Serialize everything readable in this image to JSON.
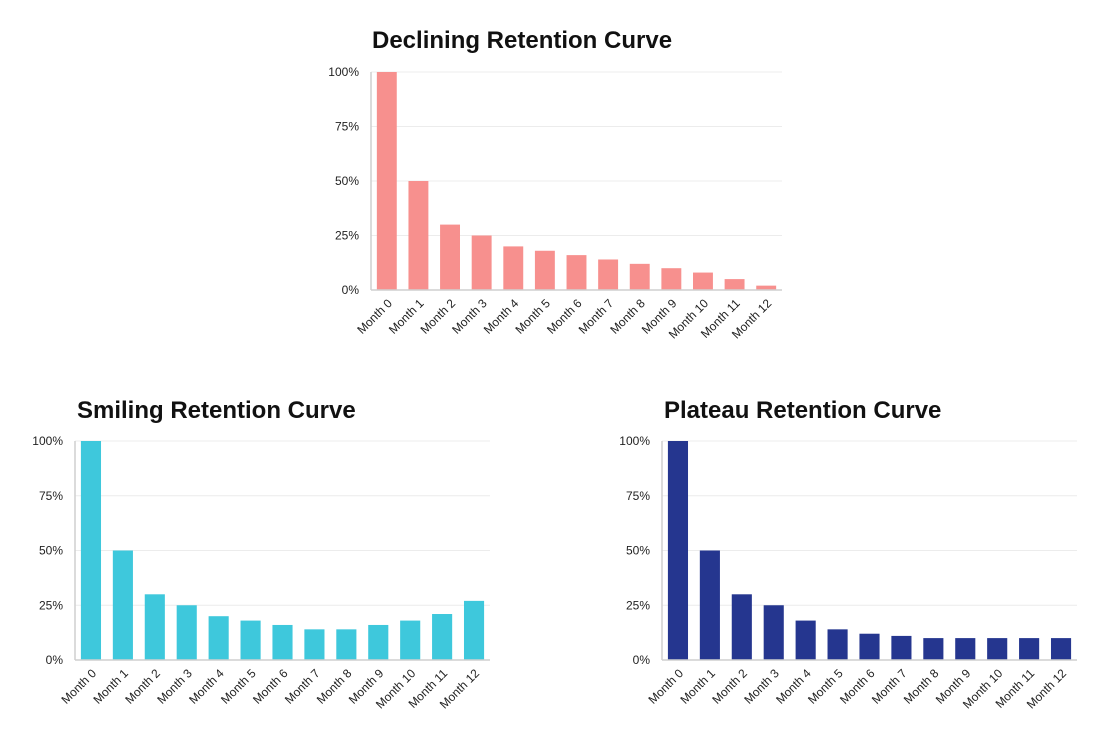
{
  "chart_data": [
    {
      "type": "bar",
      "title": "Declining Retention Curve",
      "color": "#F7908E",
      "categories": [
        "Month 0",
        "Month 1",
        "Month 2",
        "Month 3",
        "Month 4",
        "Month 5",
        "Month 6",
        "Month 7",
        "Month 8",
        "Month 9",
        "Month 10",
        "Month 11",
        "Month 12"
      ],
      "values": [
        100,
        50,
        30,
        25,
        20,
        18,
        16,
        14,
        12,
        10,
        8,
        5,
        2
      ],
      "ylim": [
        0,
        100
      ],
      "yticks": [
        "0%",
        "25%",
        "50%",
        "75%",
        "100%"
      ],
      "grid": true
    },
    {
      "type": "bar",
      "title": "Smiling Retention Curve",
      "color": "#3EC8DC",
      "categories": [
        "Month 0",
        "Month 1",
        "Month 2",
        "Month 3",
        "Month 4",
        "Month 5",
        "Month 6",
        "Month 7",
        "Month 8",
        "Month 9",
        "Month 10",
        "Month 11",
        "Month 12"
      ],
      "values": [
        100,
        50,
        30,
        25,
        20,
        18,
        16,
        14,
        14,
        16,
        18,
        21,
        27
      ],
      "ylim": [
        0,
        100
      ],
      "yticks": [
        "0%",
        "25%",
        "50%",
        "75%",
        "100%"
      ],
      "grid": true
    },
    {
      "type": "bar",
      "title": "Plateau Retention Curve",
      "color": "#25368F",
      "categories": [
        "Month 0",
        "Month 1",
        "Month 2",
        "Month 3",
        "Month 4",
        "Month 5",
        "Month 6",
        "Month 7",
        "Month 8",
        "Month 9",
        "Month 10",
        "Month 11",
        "Month 12"
      ],
      "values": [
        100,
        50,
        30,
        25,
        18,
        14,
        12,
        11,
        10,
        10,
        10,
        10,
        10
      ],
      "ylim": [
        0,
        100
      ],
      "yticks": [
        "0%",
        "25%",
        "50%",
        "75%",
        "100%"
      ],
      "grid": true
    }
  ]
}
